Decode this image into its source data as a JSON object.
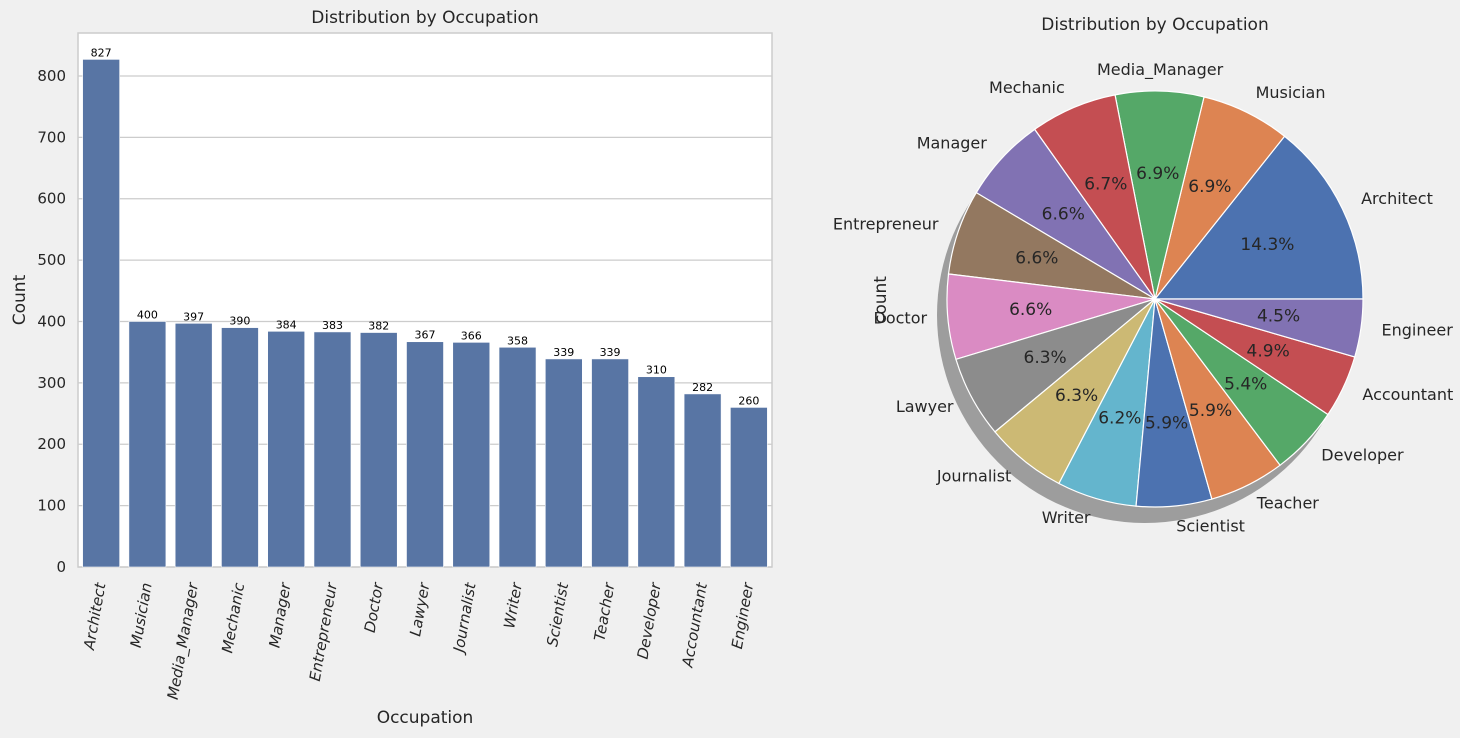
{
  "chart_data": [
    {
      "type": "bar",
      "title": "Distribution by Occupation",
      "xlabel": "Occupation",
      "ylabel": "Count",
      "ylim": [
        0,
        870
      ],
      "yticks": [
        0,
        100,
        200,
        300,
        400,
        500,
        600,
        700,
        800
      ],
      "grid": true,
      "color": "#5875a4",
      "categories": [
        "Architect",
        "Musician",
        "Media_Manager",
        "Mechanic",
        "Manager",
        "Entrepreneur",
        "Doctor",
        "Lawyer",
        "Journalist",
        "Writer",
        "Scientist",
        "Teacher",
        "Developer",
        "Accountant",
        "Engineer"
      ],
      "values": [
        827,
        400,
        397,
        390,
        384,
        383,
        382,
        367,
        366,
        358,
        339,
        339,
        310,
        282,
        260
      ]
    },
    {
      "type": "pie",
      "title": "Distribution by Occupation",
      "ylabel": "count",
      "shadow": true,
      "labels": [
        "Architect",
        "Musician",
        "Media_Manager",
        "Mechanic",
        "Manager",
        "Entrepreneur",
        "Doctor",
        "Lawyer",
        "Journalist",
        "Writer",
        "Scientist",
        "Teacher",
        "Developer",
        "Accountant",
        "Engineer"
      ],
      "values": [
        827,
        400,
        397,
        390,
        384,
        383,
        382,
        367,
        366,
        358,
        339,
        339,
        310,
        282,
        260
      ],
      "pct_labels": [
        "14.3%",
        "6.9%",
        "6.9%",
        "6.7%",
        "6.6%",
        "6.6%",
        "6.6%",
        "6.3%",
        "6.3%",
        "6.2%",
        "5.9%",
        "5.9%",
        "5.4%",
        "4.9%",
        "4.5%"
      ],
      "colors": [
        "#4c72b0",
        "#dd8452",
        "#55a868",
        "#c44e52",
        "#8172b3",
        "#937860",
        "#da8bc3",
        "#8c8c8c",
        "#ccb974",
        "#64b5cd",
        "#4c72b0",
        "#dd8452",
        "#55a868",
        "#c44e52",
        "#8172b3"
      ]
    }
  ]
}
